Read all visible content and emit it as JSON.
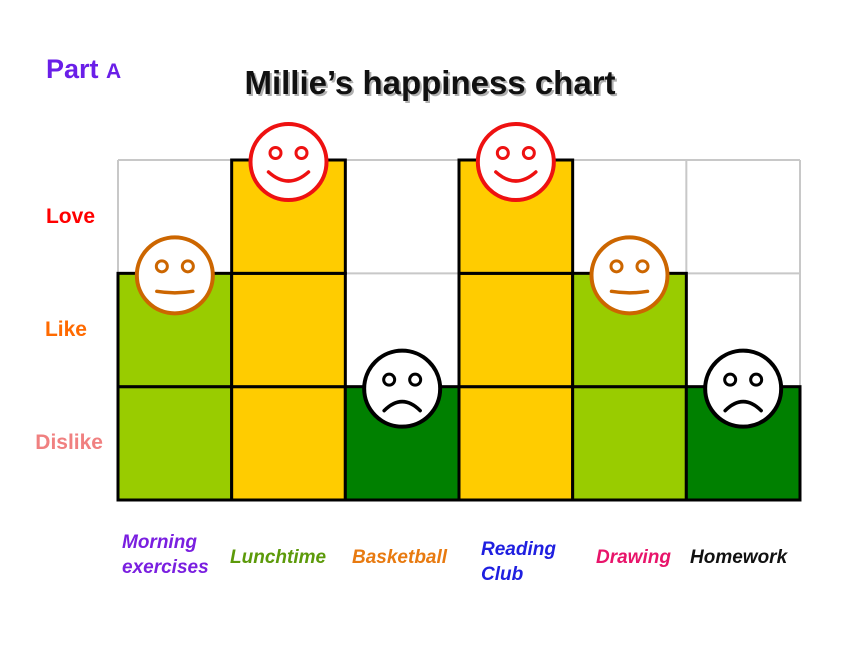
{
  "part": {
    "word": "Part",
    "letter": "A"
  },
  "chart_data": {
    "type": "bar",
    "title": "Millie’s happiness chart",
    "levels": [
      {
        "label": "Dislike",
        "value": 1,
        "color": "#f08080"
      },
      {
        "label": "Like",
        "value": 2,
        "color": "#ff6a00"
      },
      {
        "label": "Love",
        "value": 3,
        "color": "#ff0000"
      }
    ],
    "ylim": [
      0,
      3
    ],
    "categories": [
      "Morning exercises",
      "Lunchtime",
      "Basketball",
      "Reading Club",
      "Drawing",
      "Homework"
    ],
    "category_lines": [
      [
        "Morning",
        "exercises"
      ],
      [
        "Lunchtime"
      ],
      [
        "Basketball"
      ],
      [
        "Reading",
        "Club"
      ],
      [
        "Drawing"
      ],
      [
        "Homework"
      ]
    ],
    "category_colors": [
      "#7a1fe0",
      "#5c9a0a",
      "#e87a10",
      "#1f1fe0",
      "#e8146a",
      "#111111"
    ],
    "values": [
      2,
      3,
      1,
      3,
      2,
      1
    ],
    "value_colors": {
      "1": "#008000",
      "2": "#99cc00",
      "3": "#ffcc00"
    },
    "face_colors": {
      "1": "#000000",
      "2": "#cc6600",
      "3": "#ee1111"
    },
    "grid": true
  }
}
